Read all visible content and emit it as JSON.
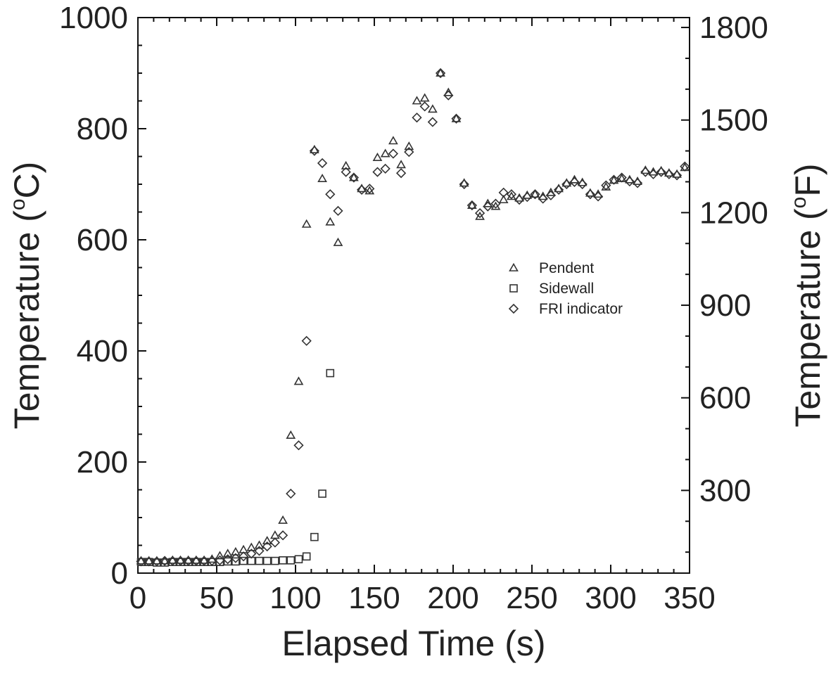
{
  "chart_data": {
    "type": "scatter",
    "title": "",
    "xlabel": "Elapsed Time (s)",
    "ylabel_left": [
      "Temperature (",
      "o",
      "C)"
    ],
    "ylabel_right": [
      "Temperature (",
      "o",
      "F)"
    ],
    "xlim": [
      0,
      350
    ],
    "ylim": [
      0,
      1000
    ],
    "ylim_right": [
      32,
      1832
    ],
    "xticks": [
      "0",
      "50",
      "100",
      "150",
      "200",
      "250",
      "300",
      "350"
    ],
    "yticks_left": [
      "0",
      "200",
      "400",
      "600",
      "800",
      "1000"
    ],
    "yticks_right": [
      "300",
      "600",
      "900",
      "1200",
      "1500",
      "1800"
    ],
    "grid": false,
    "legend_position": "right-center",
    "series": [
      {
        "name": "Pendent",
        "marker": "triangle",
        "x": [
          2,
          7,
          12,
          17,
          22,
          27,
          32,
          37,
          42,
          47,
          52,
          57,
          62,
          67,
          72,
          77,
          82,
          87,
          92,
          97,
          102,
          107,
          112,
          117,
          122,
          127,
          132,
          137,
          142,
          147,
          152,
          157,
          162,
          167,
          172,
          177,
          182,
          187,
          192,
          197,
          202,
          207,
          212,
          217,
          222,
          227,
          232,
          237,
          242,
          247,
          252,
          257,
          262,
          267,
          272,
          277,
          282,
          287,
          292,
          297,
          302,
          307,
          312,
          317,
          322,
          327,
          332,
          337,
          342,
          347
        ],
        "y": [
          22,
          22,
          22,
          22,
          23,
          23,
          23,
          23,
          23,
          25,
          31,
          35,
          38,
          42,
          46,
          50,
          58,
          68,
          95,
          248,
          345,
          628,
          762,
          710,
          632,
          595,
          733,
          712,
          692,
          688,
          748,
          755,
          778,
          735,
          768,
          850,
          855,
          835,
          900,
          865,
          818,
          702,
          662,
          642,
          665,
          660,
          672,
          678,
          675,
          680,
          682,
          678,
          685,
          692,
          702,
          708,
          703,
          684,
          682,
          695,
          707,
          710,
          708,
          705,
          725,
          722,
          724,
          720,
          718,
          730
        ]
      },
      {
        "name": "Sidewall",
        "marker": "square",
        "x": [
          2,
          7,
          12,
          17,
          22,
          27,
          32,
          37,
          42,
          47,
          52,
          57,
          62,
          67,
          72,
          77,
          82,
          87,
          92,
          97,
          102,
          107,
          112,
          117,
          122
        ],
        "y": [
          20,
          20,
          19,
          19,
          20,
          20,
          20,
          20,
          20,
          20,
          20,
          21,
          21,
          22,
          22,
          22,
          22,
          22,
          23,
          23,
          25,
          30,
          65,
          143,
          360
        ]
      },
      {
        "name": "FRI indicator",
        "marker": "diamond",
        "x": [
          2,
          7,
          12,
          17,
          22,
          27,
          32,
          37,
          42,
          47,
          52,
          57,
          62,
          67,
          72,
          77,
          82,
          87,
          92,
          97,
          102,
          107,
          112,
          117,
          122,
          127,
          132,
          137,
          142,
          147,
          152,
          157,
          162,
          167,
          172,
          177,
          182,
          187,
          192,
          197,
          202,
          207,
          212,
          217,
          222,
          227,
          232,
          237,
          242,
          247,
          252,
          257,
          262,
          267,
          272,
          277,
          282,
          287,
          292,
          297,
          302,
          307,
          312,
          317,
          322,
          327,
          332,
          337,
          342,
          347
        ],
        "y": [
          21,
          21,
          21,
          22,
          22,
          22,
          22,
          22,
          22,
          22,
          23,
          25,
          27,
          30,
          35,
          40,
          48,
          55,
          68,
          143,
          230,
          418,
          760,
          738,
          682,
          652,
          722,
          712,
          690,
          692,
          722,
          728,
          755,
          720,
          758,
          820,
          840,
          812,
          900,
          860,
          818,
          700,
          662,
          648,
          660,
          665,
          685,
          682,
          672,
          677,
          682,
          674,
          680,
          690,
          700,
          704,
          700,
          682,
          678,
          698,
          708,
          712,
          705,
          702,
          722,
          718,
          722,
          718,
          716,
          732
        ]
      }
    ]
  }
}
